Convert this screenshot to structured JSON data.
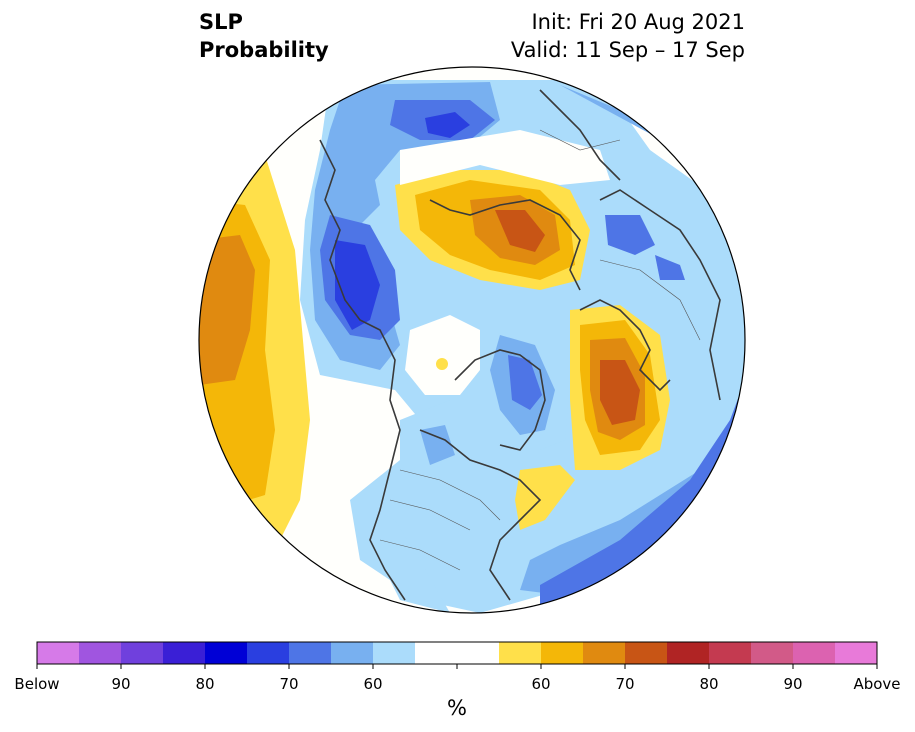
{
  "title": {
    "line1": "SLP",
    "line2": "Probability",
    "init": "Init: Fri 20 Aug 2021",
    "valid": "Valid: 11 Sep – 17 Sep"
  },
  "colorbar": {
    "unit_label": "%",
    "tick_labels": [
      "Below",
      "90",
      "80",
      "70",
      "60",
      "60",
      "70",
      "80",
      "90",
      "Above"
    ],
    "colors": [
      "#d67ae8",
      "#a055e0",
      "#7040dd",
      "#3a1fd6",
      "#0000d6",
      "#2a3fe0",
      "#4e75e6",
      "#78b0f0",
      "#abdcfb",
      "#ffffff",
      "#ffffff",
      "#ffe04a",
      "#f4b708",
      "#e08a10",
      "#c85515",
      "#b02424",
      "#c43a50",
      "#d25a88",
      "#dc62b0",
      "#e87ad9"
    ]
  }
}
